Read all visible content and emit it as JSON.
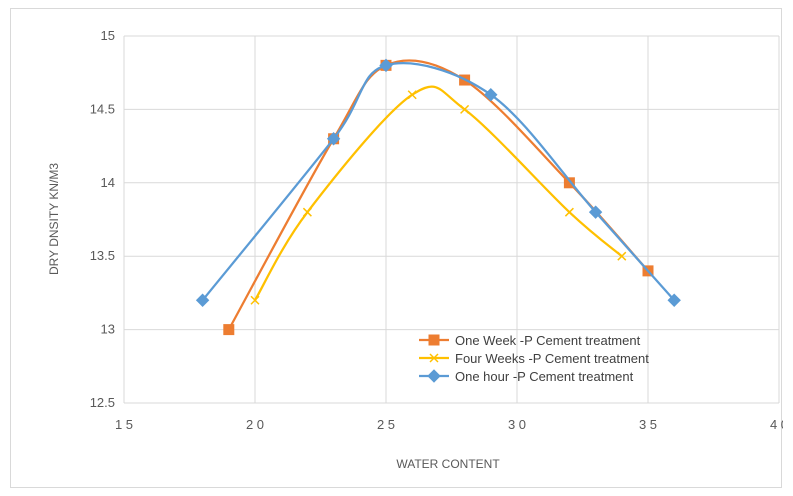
{
  "chart_data": {
    "type": "line",
    "xlabel": "WATER CONTENT",
    "ylabel": "DRY DNSITY KN/M3",
    "xlim": [
      15,
      40
    ],
    "ylim": [
      12.5,
      15
    ],
    "x_ticks": [
      15,
      20,
      25,
      30,
      35,
      40
    ],
    "x_tick_labels": [
      "1 5",
      "2 0",
      "2 5",
      "3 0",
      "3 5",
      "4 0"
    ],
    "y_ticks": [
      12.5,
      13,
      13.5,
      14,
      14.5,
      15
    ],
    "y_tick_labels": [
      "12.5",
      "13",
      "13.5",
      "14",
      "14.5",
      "15"
    ],
    "grid": true,
    "legend_position": "bottom-center",
    "series": [
      {
        "name": "One Week -P Cement treatment",
        "color": "#ed7d31",
        "marker": "square",
        "points": [
          [
            19,
            13.0
          ],
          [
            23,
            14.3
          ],
          [
            25,
            14.8
          ],
          [
            28,
            14.7
          ],
          [
            32,
            14.0
          ],
          [
            35,
            13.4
          ]
        ]
      },
      {
        "name": "Four Weeks -P Cement treatment",
        "color": "#ffc000",
        "marker": "x",
        "points": [
          [
            20,
            13.2
          ],
          [
            22,
            13.8
          ],
          [
            26,
            14.6
          ],
          [
            28,
            14.5
          ],
          [
            32,
            13.8
          ],
          [
            34,
            13.5
          ]
        ]
      },
      {
        "name": "One hour -P Cement treatment",
        "color": "#5b9bd5",
        "marker": "diamond",
        "points": [
          [
            18,
            13.2
          ],
          [
            23,
            14.3
          ],
          [
            25,
            14.8
          ],
          [
            29,
            14.6
          ],
          [
            33,
            13.8
          ],
          [
            36,
            13.2
          ]
        ]
      }
    ]
  }
}
